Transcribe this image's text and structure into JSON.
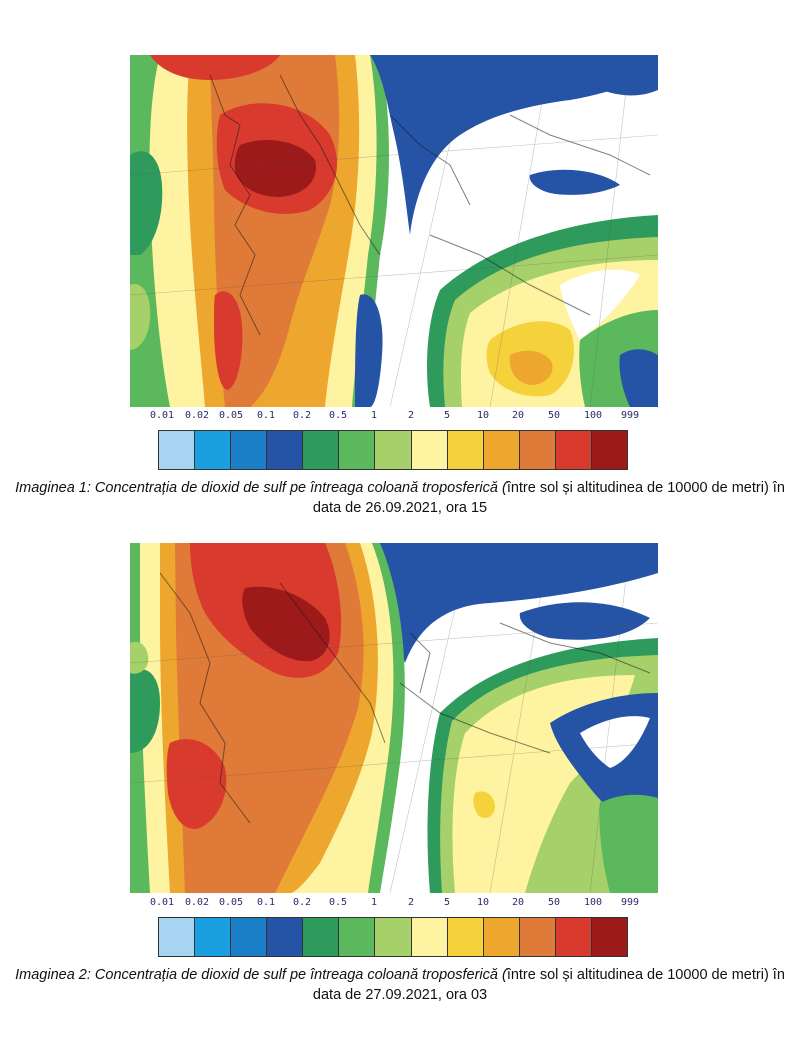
{
  "legend": {
    "ticks": [
      "0.01",
      "0.02",
      "0.05",
      "0.1",
      "0.2",
      "0.5",
      "1",
      "2",
      "5",
      "10",
      "20",
      "50",
      "100",
      "999"
    ],
    "colors": [
      "#a7d4f0",
      "#1aa0e0",
      "#1b7fc8",
      "#2553a6",
      "#2e9a5c",
      "#5cb85c",
      "#a6d06a",
      "#fdf3a0",
      "#f5d23c",
      "#eda62e",
      "#e07a38",
      "#d93a2e",
      "#9c1a1a"
    ]
  },
  "palette": {
    "white": "#ffffff",
    "blue": "#2553a6",
    "dark_green": "#2e9a5c",
    "green": "#5cb85c",
    "light_green": "#a6d06a",
    "light_yellow": "#fdf3a0",
    "yellow": "#f5d23c",
    "orange_yellow": "#eda62e",
    "orange": "#e07a38",
    "red": "#d93a2e",
    "dark_red": "#9c1a1a"
  },
  "figures": [
    {
      "caption_italic": "Imaginea 1: Concentrația de dioxid de sulf pe întreaga coloană troposferică (",
      "caption_plain": "între sol și altitudinea de 10000 de metri) în data de 26.09.2021, ora 15"
    },
    {
      "caption_italic": "Imaginea 2: Concentrația de dioxid de sulf pe întreaga coloană troposferică (",
      "caption_plain": "între sol și altitudinea de 10000 de metri) în data de 27.09.2021, ora 03"
    }
  ]
}
